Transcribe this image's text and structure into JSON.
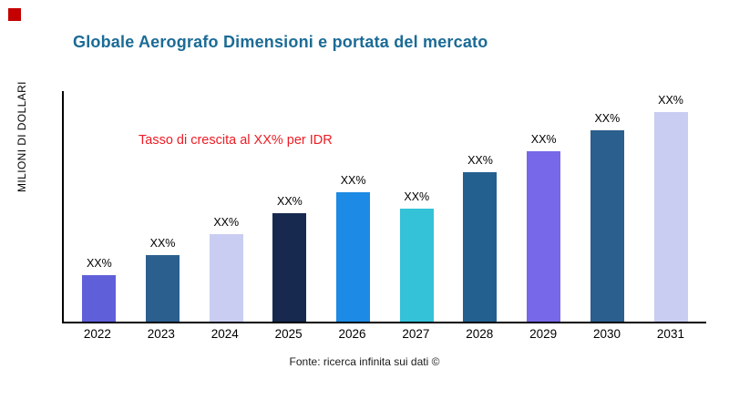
{
  "page": {
    "title": "Globale Aerografo Dimensioni e portata del mercato",
    "annotation": "Tasso di crescita al XX% per IDR",
    "source": "Fonte: ricerca infinita sui dati ©"
  },
  "colors": {
    "title": "#1b6b96",
    "annotation": "#ed1c24",
    "brand_mark": "#c40000",
    "axis": "#000000"
  },
  "chart_data": {
    "type": "bar",
    "title": "Globale Aerografo Dimensioni e portata del mercato",
    "xlabel": "",
    "ylabel": "MILIONI DI DOLLARI",
    "categories": [
      "2022",
      "2023",
      "2024",
      "2025",
      "2026",
      "2027",
      "2028",
      "2029",
      "2030",
      "2031"
    ],
    "values": [
      20,
      29,
      38,
      47,
      56,
      49,
      65,
      74,
      83,
      91
    ],
    "bar_labels": [
      "XX%",
      "XX%",
      "XX%",
      "XX%",
      "XX%",
      "XX%",
      "XX%",
      "XX%",
      "XX%",
      "XX%"
    ],
    "bar_colors": [
      "#5f5fd9",
      "#2b5f8e",
      "#c9cdf2",
      "#17294f",
      "#1d8ae5",
      "#33c2d8",
      "#23608f",
      "#7668e8",
      "#2b5f8e",
      "#c9cdf2"
    ],
    "ylim": [
      0,
      100
    ],
    "grid": false,
    "legend": false,
    "annotation": "Tasso di crescita al XX% per IDR",
    "source": "Fonte: ricerca infinita sui dati ©"
  }
}
